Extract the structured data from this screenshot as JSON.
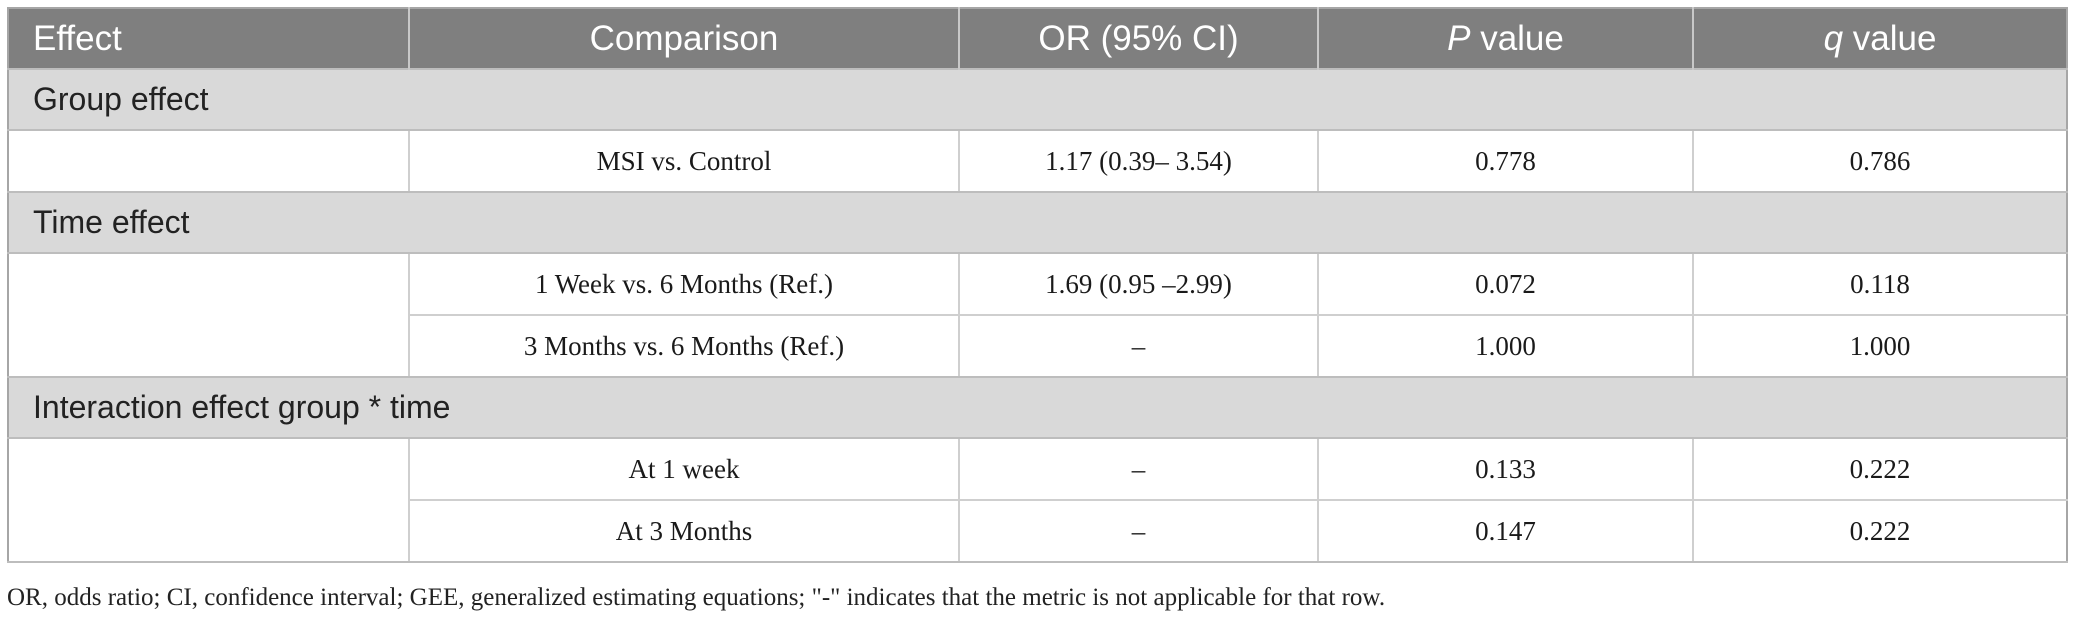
{
  "table": {
    "headers": {
      "effect": "Effect",
      "comparison": "Comparison",
      "or_ci": "OR (95% CI)",
      "p_value_italic": "P",
      "p_value_rest": " value",
      "q_value_italic": "q",
      "q_value_rest": " value"
    },
    "sections": [
      {
        "title": "Group effect",
        "rows": [
          {
            "comparison": "MSI vs. Control",
            "or_ci": "1.17 (0.39– 3.54)",
            "p": "0.778",
            "q": "0.786"
          }
        ]
      },
      {
        "title": "Time effect",
        "rows": [
          {
            "comparison": "1 Week vs. 6 Months (Ref.)",
            "or_ci": "1.69 (0.95 –2.99)",
            "p": "0.072",
            "q": "0.118"
          },
          {
            "comparison": "3 Months vs. 6 Months (Ref.)",
            "or_ci": "–",
            "p": "1.000",
            "q": "1.000"
          }
        ]
      },
      {
        "title": "Interaction effect group * time",
        "rows": [
          {
            "comparison": "At 1 week",
            "or_ci": "–",
            "p": "0.133",
            "q": "0.222"
          },
          {
            "comparison": "At 3 Months",
            "or_ci": "–",
            "p": "0.147",
            "q": "0.222"
          }
        ]
      }
    ]
  },
  "footnote": "OR, odds ratio; CI, confidence interval; GEE, generalized estimating equations; \"-\" indicates that the metric is not applicable for that row."
}
